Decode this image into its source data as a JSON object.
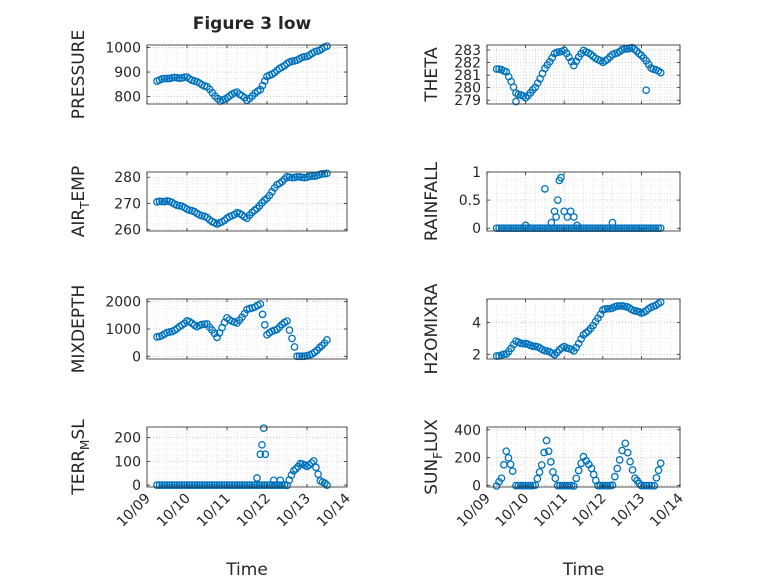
{
  "figure": {
    "title": "Figure 3 low",
    "marker_color": "#0072BD",
    "axis_color": "#262626",
    "grid_color": "#b8b8b8",
    "x_tick_labels": [
      "10/09",
      "10/10",
      "10/11",
      "10/12",
      "10/13",
      "10/14"
    ],
    "x_label": "Time"
  },
  "chart_data": [
    {
      "type": "scatter",
      "ylabel": "PRESSURE",
      "xlim": [
        "2023-10-09",
        "2023-10-14"
      ],
      "ylim": [
        770,
        1010
      ],
      "yticks": [
        800,
        900,
        1000
      ],
      "xticks_shown": false,
      "keyframes": [
        [
          "2023-10-09 06:00",
          865
        ],
        [
          "2023-10-09 12:00",
          875
        ],
        [
          "2023-10-10 00:00",
          878
        ],
        [
          "2023-10-10 12:00",
          840
        ],
        [
          "2023-10-10 20:00",
          780
        ],
        [
          "2023-10-11 06:00",
          820
        ],
        [
          "2023-10-11 12:00",
          785
        ],
        [
          "2023-10-11 20:00",
          830
        ],
        [
          "2023-10-12 00:00",
          880
        ],
        [
          "2023-10-12 06:00",
          905
        ],
        [
          "2023-10-12 12:00",
          935
        ],
        [
          "2023-10-13 00:00",
          965
        ],
        [
          "2023-10-13 06:00",
          985
        ],
        [
          "2023-10-13 12:00",
          1005
        ]
      ]
    },
    {
      "type": "scatter",
      "ylabel": "THETA",
      "xlim": [
        "2023-10-09",
        "2023-10-14"
      ],
      "ylim": [
        278.7,
        283.4
      ],
      "yticks": [
        279,
        280,
        281,
        282,
        283
      ],
      "xticks_shown": false,
      "keyframes": [
        [
          "2023-10-09 06:00",
          281.5
        ],
        [
          "2023-10-09 12:00",
          281.3
        ],
        [
          "2023-10-09 18:00",
          279.6
        ],
        [
          "2023-10-10 00:00",
          279.2
        ],
        [
          "2023-10-10 06:00",
          280.0
        ],
        [
          "2023-10-10 12:00",
          281.5
        ],
        [
          "2023-10-10 18:00",
          282.7
        ],
        [
          "2023-10-11 00:00",
          283.0
        ],
        [
          "2023-10-11 06:00",
          281.8
        ],
        [
          "2023-10-11 12:00",
          283.0
        ],
        [
          "2023-10-11 18:00",
          282.5
        ],
        [
          "2023-10-12 00:00",
          282.0
        ],
        [
          "2023-10-12 06:00",
          282.6
        ],
        [
          "2023-10-12 12:00",
          283.0
        ],
        [
          "2023-10-12 18:00",
          283.2
        ],
        [
          "2023-10-13 00:00",
          282.6
        ],
        [
          "2023-10-13 06:00",
          281.6
        ],
        [
          "2023-10-13 12:00",
          281.2
        ]
      ],
      "outliers": [
        [
          "2023-10-09 18:00",
          278.9
        ],
        [
          "2023-10-13 03:00",
          279.8
        ]
      ]
    },
    {
      "type": "scatter",
      "ylabel": "AIR_TEMP",
      "ylabel_main": "AIR",
      "ylabel_sub": "T",
      "ylabel_tail": "EMP",
      "xlim": [
        "2023-10-09",
        "2023-10-14"
      ],
      "ylim": [
        259.5,
        282
      ],
      "yticks": [
        260,
        270,
        280
      ],
      "xticks_shown": false,
      "keyframes": [
        [
          "2023-10-09 06:00",
          270.5
        ],
        [
          "2023-10-09 12:00",
          271
        ],
        [
          "2023-10-10 00:00",
          268
        ],
        [
          "2023-10-10 12:00",
          264.5
        ],
        [
          "2023-10-10 18:00",
          262
        ],
        [
          "2023-10-11 06:00",
          266.5
        ],
        [
          "2023-10-11 12:00",
          264.5
        ],
        [
          "2023-10-12 00:00",
          272
        ],
        [
          "2023-10-12 06:00",
          277
        ],
        [
          "2023-10-12 12:00",
          280
        ],
        [
          "2023-10-13 00:00",
          280
        ],
        [
          "2023-10-13 12:00",
          281.5
        ]
      ]
    },
    {
      "type": "scatter",
      "ylabel": "RAINFALL",
      "xlim": [
        "2023-10-09",
        "2023-10-14"
      ],
      "ylim": [
        -0.05,
        1.0
      ],
      "yticks": [
        0,
        0.5,
        1
      ],
      "xticks_shown": false,
      "keyframes": [
        [
          "2023-10-09 06:00",
          0
        ],
        [
          "2023-10-13 12:00",
          0
        ]
      ],
      "outliers": [
        [
          "2023-10-10 00:00",
          0.05
        ],
        [
          "2023-10-10 12:00",
          0.7
        ],
        [
          "2023-10-10 18:00",
          0.3
        ],
        [
          "2023-10-10 19:00",
          0.2
        ],
        [
          "2023-10-10 21:00",
          0.85
        ],
        [
          "2023-10-10 22:00",
          0.9
        ],
        [
          "2023-10-11 00:00",
          0.3
        ],
        [
          "2023-10-11 02:00",
          0.2
        ],
        [
          "2023-10-11 04:00",
          0.3
        ],
        [
          "2023-10-11 06:00",
          0.2
        ],
        [
          "2023-10-10 20:00",
          0.5
        ],
        [
          "2023-10-12 06:00",
          0.1
        ],
        [
          "2023-10-10 16:00",
          0.1
        ],
        [
          "2023-10-11 08:00",
          0.05
        ]
      ]
    },
    {
      "type": "scatter",
      "ylabel": "MIXDEPTH",
      "xlim": [
        "2023-10-09",
        "2023-10-14"
      ],
      "ylim": [
        -100,
        2100
      ],
      "yticks": [
        0,
        1000,
        2000
      ],
      "xticks_shown": false,
      "keyframes": [
        [
          "2023-10-09 06:00",
          700
        ],
        [
          "2023-10-09 18:00",
          1000
        ],
        [
          "2023-10-10 00:00",
          1300
        ],
        [
          "2023-10-10 06:00",
          1100
        ],
        [
          "2023-10-10 12:00",
          1200
        ],
        [
          "2023-10-10 18:00",
          700
        ],
        [
          "2023-10-11 00:00",
          1400
        ],
        [
          "2023-10-11 06:00",
          1200
        ],
        [
          "2023-10-11 12:00",
          1700
        ],
        [
          "2023-10-11 20:00",
          1900
        ],
        [
          "2023-10-12 00:00",
          800
        ],
        [
          "2023-10-12 06:00",
          1000
        ],
        [
          "2023-10-12 12:00",
          1300
        ],
        [
          "2023-10-12 18:00",
          0
        ],
        [
          "2023-10-13 00:00",
          0
        ],
        [
          "2023-10-13 06:00",
          200
        ],
        [
          "2023-10-13 12:00",
          600
        ]
      ]
    },
    {
      "type": "scatter",
      "ylabel": "H2OMIXRA",
      "xlim": [
        "2023-10-09",
        "2023-10-14"
      ],
      "ylim": [
        1.7,
        5.5
      ],
      "yticks": [
        2,
        4
      ],
      "xticks_shown": false,
      "keyframes": [
        [
          "2023-10-09 06:00",
          1.9
        ],
        [
          "2023-10-09 12:00",
          2.0
        ],
        [
          "2023-10-09 18:00",
          2.8
        ],
        [
          "2023-10-10 06:00",
          2.5
        ],
        [
          "2023-10-10 18:00",
          2.0
        ],
        [
          "2023-10-11 00:00",
          2.5
        ],
        [
          "2023-10-11 06:00",
          2.2
        ],
        [
          "2023-10-11 12:00",
          3.2
        ],
        [
          "2023-10-11 18:00",
          3.8
        ],
        [
          "2023-10-12 00:00",
          4.8
        ],
        [
          "2023-10-12 12:00",
          5.1
        ],
        [
          "2023-10-13 00:00",
          4.6
        ],
        [
          "2023-10-13 12:00",
          5.3
        ]
      ]
    },
    {
      "type": "scatter",
      "ylabel": "TERR_MSL",
      "ylabel_main": "TERR",
      "ylabel_sub": "M",
      "ylabel_tail": "SL",
      "xlim": [
        "2023-10-09",
        "2023-10-14"
      ],
      "ylim": [
        -8,
        245
      ],
      "yticks": [
        0,
        100,
        200
      ],
      "xticks_shown": true,
      "keyframes": [
        [
          "2023-10-09 06:00",
          0
        ],
        [
          "2023-10-12 00:00",
          0
        ],
        [
          "2023-10-12 12:00",
          0
        ],
        [
          "2023-10-12 16:00",
          60
        ],
        [
          "2023-10-12 20:00",
          90
        ],
        [
          "2023-10-13 00:00",
          80
        ],
        [
          "2023-10-13 04:00",
          100
        ],
        [
          "2023-10-13 08:00",
          20
        ],
        [
          "2023-10-13 12:00",
          0
        ]
      ],
      "outliers": [
        [
          "2023-10-11 22:00",
          240
        ],
        [
          "2023-10-11 21:00",
          170
        ],
        [
          "2023-10-11 20:00",
          130
        ],
        [
          "2023-10-11 23:00",
          130
        ],
        [
          "2023-10-11 18:00",
          30
        ],
        [
          "2023-10-12 04:00",
          20
        ],
        [
          "2023-10-12 08:00",
          20
        ]
      ]
    },
    {
      "type": "scatter",
      "ylabel": "SUN_FLUX",
      "ylabel_main": "SUN",
      "ylabel_sub": "F",
      "ylabel_tail": "LUX",
      "xlim": [
        "2023-10-09",
        "2023-10-14"
      ],
      "ylim": [
        -10,
        420
      ],
      "yticks": [
        0,
        200,
        400
      ],
      "xticks_shown": true,
      "keyframes": [
        [
          "2023-10-09 06:00",
          0
        ],
        [
          "2023-10-09 09:00",
          50
        ],
        [
          "2023-10-09 12:00",
          250
        ],
        [
          "2023-10-09 16:00",
          100
        ],
        [
          "2023-10-09 18:00",
          0
        ],
        [
          "2023-10-10 06:00",
          0
        ],
        [
          "2023-10-10 10:00",
          150
        ],
        [
          "2023-10-10 13:00",
          320
        ],
        [
          "2023-10-10 17:00",
          100
        ],
        [
          "2023-10-10 20:00",
          0
        ],
        [
          "2023-10-11 06:00",
          0
        ],
        [
          "2023-10-11 12:00",
          210
        ],
        [
          "2023-10-11 17:00",
          120
        ],
        [
          "2023-10-11 21:00",
          0
        ],
        [
          "2023-10-12 06:00",
          0
        ],
        [
          "2023-10-12 12:00",
          250
        ],
        [
          "2023-10-12 14:00",
          300
        ],
        [
          "2023-10-12 20:00",
          50
        ],
        [
          "2023-10-13 00:00",
          0
        ],
        [
          "2023-10-13 08:00",
          0
        ],
        [
          "2023-10-13 12:00",
          160
        ]
      ]
    }
  ]
}
